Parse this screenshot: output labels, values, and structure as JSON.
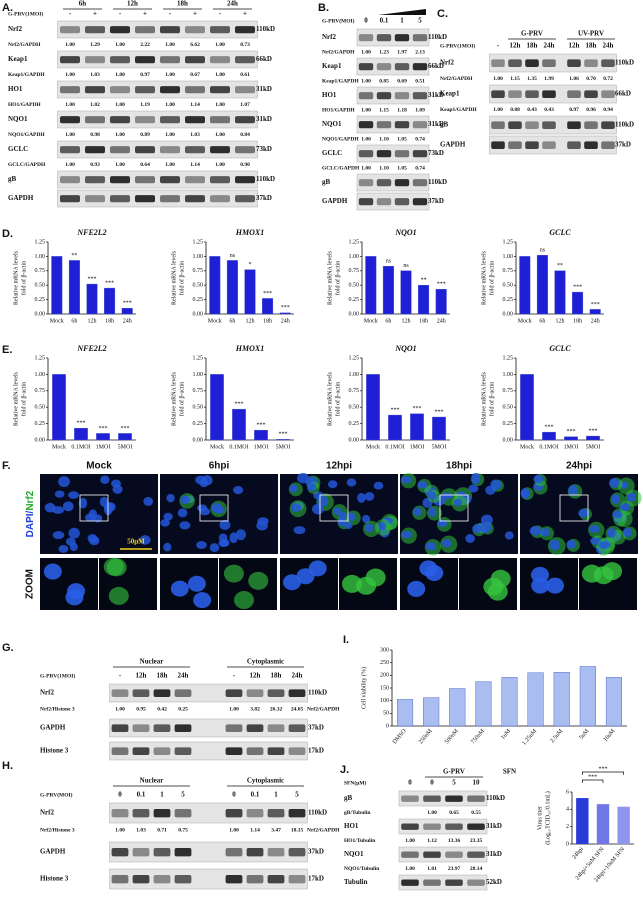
{
  "figure": {
    "A": {
      "letter": "A.",
      "treatment": "G-PRV(1MOI)",
      "groups": [
        "6h",
        "12h",
        "18h",
        "24h"
      ],
      "lanes": [
        "-",
        "+",
        "-",
        "+",
        "-",
        "+",
        "-",
        "+"
      ],
      "rows": [
        {
          "name": "Nrf2",
          "kd": "110kD",
          "ratio_label": "Nrf2/GAPDH",
          "ratios": [
            "1.00",
            "1.29",
            "1.00",
            "2.22",
            "1.00",
            "6.62",
            "1.00",
            "8.73"
          ]
        },
        {
          "name": "Keap1",
          "kd": "66kD",
          "ratio_label": "Keap1/GAPDH",
          "ratios": [
            "1.00",
            "1.03",
            "1.00",
            "0.97",
            "1.00",
            "0.67",
            "1.00",
            "0.61"
          ]
        },
        {
          "name": "HO1",
          "kd": "31kD",
          "ratio_label": "HO1/GAPDH",
          "ratios": [
            "1.00",
            "1.02",
            "1.00",
            "1.19",
            "1.00",
            "1.14",
            "1.00",
            "1.07"
          ]
        },
        {
          "name": "NQO1",
          "kd": "31kD",
          "ratio_label": "NQO1/GAPDH",
          "ratios": [
            "1.00",
            "0.98",
            "1.00",
            "0.89",
            "1.00",
            "1.03",
            "1.00",
            "0.84"
          ]
        },
        {
          "name": "GCLC",
          "kd": "73kD",
          "ratio_label": "GCLC/GAPDH",
          "ratios": [
            "1.00",
            "0.93",
            "1.00",
            "0.64",
            "1.00",
            "1.14",
            "1.00",
            "0.90"
          ]
        },
        {
          "name": "gB",
          "kd": "110kD"
        },
        {
          "name": "GAPDH",
          "kd": "37kD"
        }
      ]
    },
    "B": {
      "letter": "B.",
      "treatment": "G-PRV(MOI)",
      "lanes": [
        "0",
        "0.1",
        "1",
        "5"
      ],
      "rows": [
        {
          "name": "Nrf2",
          "kd": "110kD",
          "ratio_label": "Nrf2/GAPDH",
          "ratios": [
            "1.00",
            "1.23",
            "1.97",
            "2.13"
          ]
        },
        {
          "name": "Keap1",
          "kd": "66kD",
          "ratio_label": "Keap1/GAPDH",
          "ratios": [
            "1.00",
            "0.85",
            "0.69",
            "0.51"
          ]
        },
        {
          "name": "HO1",
          "kd": "31kD",
          "ratio_label": "HO1/GAPDH",
          "ratios": [
            "1.00",
            "1.15",
            "1.18",
            "1.09"
          ]
        },
        {
          "name": "NQO1",
          "kd": "31kD",
          "ratio_label": "NQO1/GAPDH",
          "ratios": [
            "1.00",
            "1.10",
            "1.05",
            "0.74"
          ]
        },
        {
          "name": "GCLC",
          "kd": "73kD",
          "ratio_label": "GCLC/GAPDH",
          "ratios": [
            "1.00",
            "1.10",
            "1.05",
            "0.74"
          ]
        },
        {
          "name": "gB",
          "kd": "110kD"
        },
        {
          "name": "GAPDH",
          "kd": "37kD"
        }
      ]
    },
    "C": {
      "letter": "C.",
      "treatment": "G-PRV(1MOI)",
      "groups": [
        "G-PRV",
        "UV-PRV"
      ],
      "lanes": [
        "-",
        "12h",
        "18h",
        "24h",
        "12h",
        "18h",
        "24h"
      ],
      "rows": [
        {
          "name": "Nrf2",
          "kd": "110kD",
          "ratio_label": "Nrf2/GAPDH",
          "ratios": [
            "1.00",
            "1.15",
            "1.35",
            "1.99",
            "1.06",
            "0.70",
            "0.72"
          ]
        },
        {
          "name": "Keap1",
          "kd": "66kD",
          "ratio_label": "Keap1/GAPDH",
          "ratios": [
            "1.00",
            "0.88",
            "0.43",
            "0.43",
            "0.97",
            "0.96",
            "0.94"
          ]
        },
        {
          "name": "gB",
          "kd": "110kD"
        },
        {
          "name": "GAPDH",
          "kd": "37kD"
        }
      ]
    },
    "D": {
      "letter": "D."
    },
    "E": {
      "letter": "E."
    },
    "F": {
      "letter": "F.",
      "columns": [
        "Mock",
        "6hpi",
        "12hpi",
        "18hpi",
        "24hpi"
      ],
      "row_label": [
        "DAPI/",
        "Nrf2"
      ],
      "zoom_label": "ZOOM",
      "scale": "50μM"
    },
    "G": {
      "letter": "G.",
      "treatment": "G-PRV(1MOI)",
      "groups": [
        "Nuclear",
        "Cytoplasmic"
      ],
      "lanes": [
        "-",
        "12h",
        "18h",
        "24h",
        "-",
        "12h",
        "18h",
        "24h"
      ],
      "rows": [
        {
          "name": "Nrf2",
          "kd": "110kD",
          "ratio_label": "Nrf2/Histone 3",
          "ratios": [
            "1.00",
            "0.95",
            "0.42",
            "0.25",
            "1.00",
            "3.82",
            "26.32",
            "24.65"
          ],
          "ratio_label_end": "Nrf2/GAPDH"
        },
        {
          "name": "GAPDH",
          "kd": "37kD"
        },
        {
          "name": "Histone 3",
          "kd": "17kD"
        }
      ]
    },
    "H": {
      "letter": "H.",
      "treatment": "G-PRV(MOI)",
      "groups": [
        "Nuclear",
        "Cytoplasmic"
      ],
      "lanes": [
        "0",
        "0.1",
        "1",
        "5",
        "0",
        "0.1",
        "1",
        "5"
      ],
      "rows": [
        {
          "name": "Nrf2",
          "kd": "110kD",
          "ratio_label": "Nrf2/Histone 3",
          "ratios": [
            "1.00",
            "1.03",
            "0.71",
            "0.75",
            "1.00",
            "1.14",
            "3.47",
            "18.15"
          ],
          "ratio_label_end": "Nrf2/GAPDH"
        },
        {
          "name": "GAPDH",
          "kd": "37kD"
        },
        {
          "name": "Histone 3",
          "kd": "17kD"
        }
      ]
    },
    "I": {
      "letter": "I."
    },
    "J": {
      "letter": "J.",
      "treatment": "SFN(μM)",
      "groups": [
        "G-PRV"
      ],
      "lanes": [
        "0",
        "0",
        "5",
        "10"
      ],
      "rows": [
        {
          "name": "gB",
          "kd": "110kD",
          "ratio_label": "gB/Tubulin",
          "ratios": [
            null,
            "1.00",
            "0.65",
            "0.55"
          ]
        },
        {
          "name": "HO1",
          "kd": "31kD",
          "ratio_label": "HO1/Tubulin",
          "ratios": [
            "1.00",
            "1.12",
            "13.36",
            "23.35"
          ]
        },
        {
          "name": "NQO1",
          "kd": "31kD",
          "ratio_label": "NQO1/Tubulin",
          "ratios": [
            "1.00",
            "1.01",
            "23.97",
            "28.14"
          ]
        },
        {
          "name": "Tubulin",
          "kd": "52kD"
        }
      ]
    }
  },
  "chart_data": [
    {
      "type": "bar",
      "title": "NFE2L2",
      "ylabel": [
        "Relative mRNA levels",
        "fold of β-actin"
      ],
      "categories": [
        "Mock",
        "6h",
        "12h",
        "18h",
        "24h"
      ],
      "values": [
        1.0,
        0.93,
        0.52,
        0.45,
        0.1
      ],
      "annotations": [
        null,
        "**",
        "***",
        "***",
        "***"
      ],
      "color": "#1f1fd6",
      "ylim": [
        0,
        1.25
      ],
      "yticks": [
        {
          "value": 0,
          "label": "0.00"
        },
        0.25,
        {
          "value": 0.5,
          "label": "0.50"
        },
        0.75,
        {
          "value": 1,
          "label": "1.00"
        },
        1.25
      ]
    },
    {
      "type": "bar",
      "title": "HMOX1",
      "ylabel": [
        "Relative mRNA levels",
        "fold of β-actin"
      ],
      "categories": [
        "Mock",
        "6h",
        "12h",
        "18h",
        "24h"
      ],
      "values": [
        1.0,
        0.93,
        0.77,
        0.27,
        0.02
      ],
      "annotations": [
        null,
        "ns",
        "*",
        "***",
        "***"
      ],
      "color": "#1f1fd6",
      "ylim": [
        0,
        1.25
      ],
      "yticks": [
        {
          "value": 0,
          "label": "0.00"
        },
        0.25,
        {
          "value": 0.5,
          "label": "0.50"
        },
        0.75,
        {
          "value": 1,
          "label": "1.00"
        },
        1.25
      ]
    },
    {
      "type": "bar",
      "title": "NQO1",
      "ylabel": [
        "Relative mRNA levels",
        "fold of β-actin"
      ],
      "categories": [
        "Mock",
        "6h",
        "12h",
        "18h",
        "24h"
      ],
      "values": [
        1.0,
        0.83,
        0.75,
        0.5,
        0.43
      ],
      "annotations": [
        null,
        "ns",
        "ns",
        "**",
        "***"
      ],
      "color": "#1f1fd6",
      "ylim": [
        0,
        1.25
      ],
      "yticks": [
        {
          "value": 0,
          "label": "0.00"
        },
        0.25,
        {
          "value": 0.5,
          "label": "0.50"
        },
        0.75,
        {
          "value": 1,
          "label": "1.00"
        },
        1.25
      ]
    },
    {
      "type": "bar",
      "title": "GCLC",
      "ylabel": [
        "Relative mRNA levels",
        "fold of β-actin"
      ],
      "categories": [
        "Mock",
        "6h",
        "12h",
        "18h",
        "24h"
      ],
      "values": [
        1.0,
        1.02,
        0.75,
        0.38,
        0.08
      ],
      "annotations": [
        null,
        "ns",
        "**",
        "***",
        "***"
      ],
      "color": "#1f1fd6",
      "ylim": [
        0,
        1.25
      ],
      "yticks": [
        {
          "value": 0,
          "label": "0.00"
        },
        0.25,
        {
          "value": 0.5,
          "label": "0.50"
        },
        0.75,
        {
          "value": 1,
          "label": "1.00"
        },
        1.25
      ]
    },
    {
      "type": "bar",
      "title": "NFE2L2",
      "ylabel": [
        "Relative mRNA levels",
        "fold of β-actin"
      ],
      "categories": [
        "Mock",
        "0.1MOI",
        "1MOI",
        "5MOI"
      ],
      "values": [
        1.0,
        0.18,
        0.1,
        0.1
      ],
      "annotations": [
        null,
        "***",
        "***",
        "***"
      ],
      "color": "#1f1fd6",
      "ylim": [
        0,
        1.25
      ],
      "yticks": [
        {
          "value": 0,
          "label": "0.00"
        },
        0.25,
        {
          "value": 0.5,
          "label": "0.50"
        },
        0.75,
        {
          "value": 1,
          "label": "1.00"
        },
        1.25
      ]
    },
    {
      "type": "bar",
      "title": "HMOX1",
      "ylabel": [
        "Relative mRNA levels",
        "fold of β-actin"
      ],
      "categories": [
        "Mock",
        "0.1MOI",
        "1MOI",
        "5MOI"
      ],
      "values": [
        1.0,
        0.47,
        0.15,
        0.01
      ],
      "annotations": [
        null,
        "***",
        "***",
        "***"
      ],
      "color": "#1f1fd6",
      "ylim": [
        0,
        1.25
      ],
      "yticks": [
        {
          "value": 0,
          "label": "0.00"
        },
        0.25,
        {
          "value": 0.5,
          "label": "0.50"
        },
        0.75,
        {
          "value": 1,
          "label": "1.00"
        },
        1.25
      ]
    },
    {
      "type": "bar",
      "title": "NQO1",
      "ylabel": [
        "Relative mRNA levels",
        "fold of β-actin"
      ],
      "categories": [
        "Mock",
        "0.1MOI",
        "1MOI",
        "5MOI"
      ],
      "values": [
        1.0,
        0.38,
        0.4,
        0.35
      ],
      "annotations": [
        null,
        "***",
        "***",
        "***"
      ],
      "color": "#1f1fd6",
      "ylim": [
        0,
        1.25
      ],
      "yticks": [
        {
          "value": 0,
          "label": "0.00"
        },
        0.25,
        {
          "value": 0.5,
          "label": "0.50"
        },
        0.75,
        {
          "value": 1,
          "label": "1.00"
        },
        1.25
      ]
    },
    {
      "type": "bar",
      "title": "GCLC",
      "ylabel": [
        "Relative mRNA levels",
        "fold of β-actin"
      ],
      "categories": [
        "Mock",
        "0.1MOI",
        "1MOI",
        "5MOI"
      ],
      "values": [
        1.0,
        0.12,
        0.05,
        0.06
      ],
      "annotations": [
        null,
        "***",
        "***",
        "***"
      ],
      "color": "#1f1fd6",
      "ylim": [
        0,
        1.25
      ],
      "yticks": [
        {
          "value": 0,
          "label": "0.00"
        },
        0.25,
        {
          "value": 0.5,
          "label": "0.50"
        },
        0.75,
        {
          "value": 1,
          "label": "1.00"
        },
        1.25
      ]
    },
    {
      "type": "bar",
      "ylabel": [
        "Cell viability (%)"
      ],
      "xlabel": "SFN",
      "categories": [
        "DMSO",
        "250nM",
        "500nM",
        "750nM",
        "1uM",
        "1.25uM",
        "2.5uM",
        "5uM",
        "10uM"
      ],
      "values": [
        105,
        112,
        148,
        175,
        192,
        210,
        212,
        235,
        192
      ],
      "color": "#a9bdf0",
      "ylim": [
        0,
        300
      ],
      "yticks": [
        0,
        50,
        100,
        150,
        200,
        250,
        300
      ]
    },
    {
      "type": "bar",
      "ylabel": [
        "Virus titer",
        "(Log₁₀TCID₅₀/0.1mL)"
      ],
      "categories": [
        "24hpi",
        "24hpi+5uM SFN",
        "24hpi+10uM SFN"
      ],
      "values": [
        5.3,
        4.6,
        4.3
      ],
      "annotations": [
        null,
        "***",
        "***"
      ],
      "color": "#6f78e6",
      "colors": [
        "#2a3bd8",
        "#6f78e6",
        "#8f96ee"
      ],
      "ylim": [
        0,
        6
      ],
      "yticks": [
        0,
        2,
        4,
        6
      ]
    }
  ]
}
